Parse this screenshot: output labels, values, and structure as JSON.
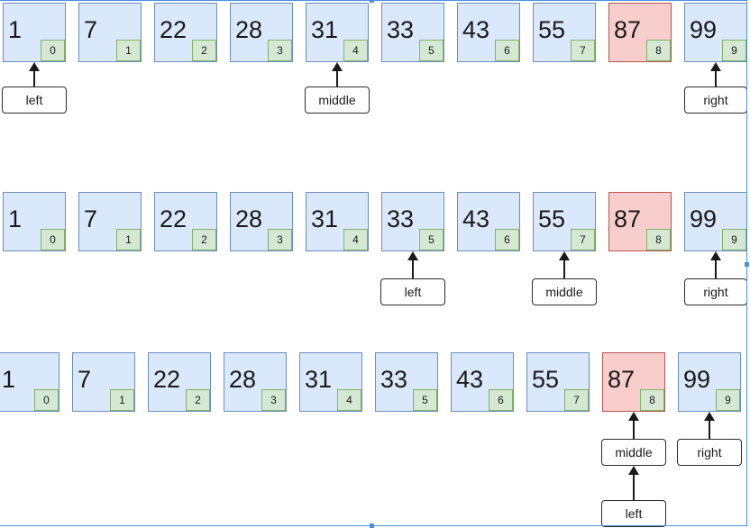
{
  "diagram": {
    "colors": {
      "cell_fill": "#dae8fc",
      "cell_border": "#6c8ebf",
      "highlight_fill": "#f8cecc",
      "highlight_border": "#b85450",
      "index_fill": "#d5e8d4",
      "index_border": "#82b366",
      "selection": "#4a90e2"
    },
    "rows": [
      {
        "cells": [
          {
            "value": "1",
            "index": "0"
          },
          {
            "value": "7",
            "index": "1"
          },
          {
            "value": "22",
            "index": "2"
          },
          {
            "value": "28",
            "index": "3"
          },
          {
            "value": "31",
            "index": "4"
          },
          {
            "value": "33",
            "index": "5"
          },
          {
            "value": "43",
            "index": "6"
          },
          {
            "value": "55",
            "index": "7"
          },
          {
            "value": "87",
            "index": "8",
            "highlight": true
          },
          {
            "value": "99",
            "index": "9"
          }
        ],
        "pointers": [
          {
            "label": "left",
            "at_index": 0
          },
          {
            "label": "middle",
            "at_index": 4
          },
          {
            "label": "right",
            "at_index": 9
          }
        ]
      },
      {
        "cells": [
          {
            "value": "1",
            "index": "0"
          },
          {
            "value": "7",
            "index": "1"
          },
          {
            "value": "22",
            "index": "2"
          },
          {
            "value": "28",
            "index": "3"
          },
          {
            "value": "31",
            "index": "4"
          },
          {
            "value": "33",
            "index": "5"
          },
          {
            "value": "43",
            "index": "6"
          },
          {
            "value": "55",
            "index": "7"
          },
          {
            "value": "87",
            "index": "8",
            "highlight": true
          },
          {
            "value": "99",
            "index": "9"
          }
        ],
        "pointers": [
          {
            "label": "left",
            "at_index": 5
          },
          {
            "label": "middle",
            "at_index": 7
          },
          {
            "label": "right",
            "at_index": 9
          }
        ]
      },
      {
        "cells": [
          {
            "value": "1",
            "index": "0"
          },
          {
            "value": "7",
            "index": "1"
          },
          {
            "value": "22",
            "index": "2"
          },
          {
            "value": "28",
            "index": "3"
          },
          {
            "value": "31",
            "index": "4"
          },
          {
            "value": "33",
            "index": "5"
          },
          {
            "value": "43",
            "index": "6"
          },
          {
            "value": "55",
            "index": "7"
          },
          {
            "value": "87",
            "index": "8",
            "highlight": true
          },
          {
            "value": "99",
            "index": "9"
          }
        ],
        "pointers": [
          {
            "label": "middle",
            "at_index": 8
          },
          {
            "label": "right",
            "at_index": 9
          },
          {
            "label": "left",
            "at_index": 8
          }
        ]
      }
    ]
  }
}
